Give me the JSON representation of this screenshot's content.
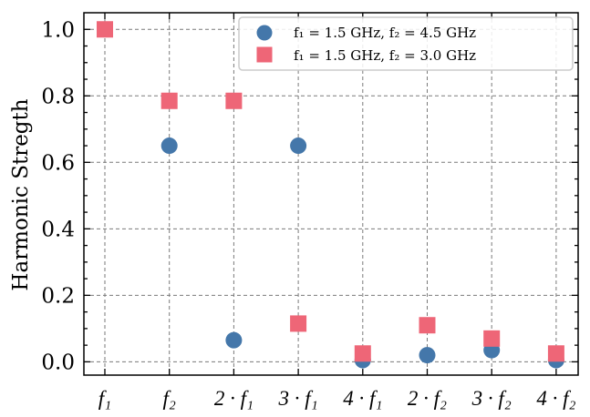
{
  "chart_data": {
    "type": "scatter",
    "ylabel": "Harmonic Stregth",
    "xlabel": "",
    "categories": [
      "f₁",
      "f₂",
      "2 · f₁",
      "3 · f₁",
      "4 · f₁",
      "2 · f₂",
      "3 · f₂",
      "4 · f₂"
    ],
    "ylim": [
      -0.04,
      1.05
    ],
    "yticks": [
      0.0,
      0.2,
      0.4,
      0.6,
      0.8,
      1.0
    ],
    "ytick_labels": [
      "0.0",
      "0.2",
      "0.4",
      "0.6",
      "0.8",
      "1.0"
    ],
    "grid": true,
    "legend_position": "top-right",
    "series": [
      {
        "name": "f₁ = 1.5 GHz,  f₂ = 4.5 GHz",
        "marker": "circle",
        "color": "#4477aa",
        "values": [
          null,
          0.65,
          0.065,
          0.65,
          0.005,
          0.02,
          0.035,
          0.005
        ]
      },
      {
        "name": "f₁ = 1.5 GHz,  f₂ = 3.0 GHz",
        "marker": "square",
        "color": "#ee6677",
        "values": [
          1.0,
          0.785,
          0.785,
          0.115,
          0.025,
          0.11,
          0.07,
          0.025
        ]
      }
    ]
  }
}
